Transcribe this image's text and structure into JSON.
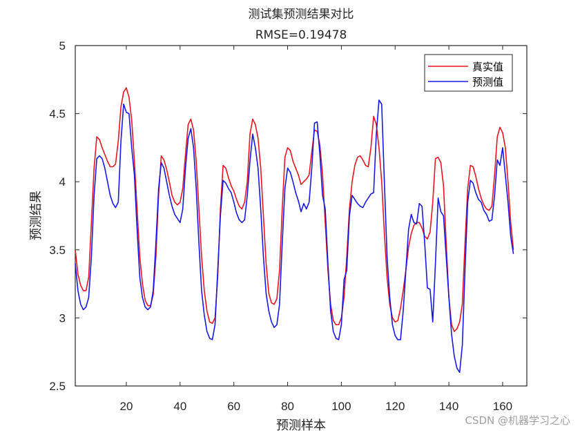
{
  "chart_data": {
    "type": "line",
    "title": "测试集预测结果对比",
    "subtitle": "RMSE=0.19478",
    "xlabel": "预测样本",
    "ylabel": "预测结果",
    "xlim": [
      1,
      169
    ],
    "ylim": [
      2.5,
      5
    ],
    "xticks": [
      20,
      40,
      60,
      80,
      100,
      120,
      140,
      160
    ],
    "yticks": [
      2.5,
      3,
      3.5,
      4,
      4.5,
      5
    ],
    "grid": false,
    "legend_position": "top-right",
    "series": [
      {
        "name": "真实值",
        "color": "#e8141f",
        "points": [
          [
            1,
            3.5
          ],
          [
            2,
            3.32
          ],
          [
            3,
            3.24
          ],
          [
            4,
            3.2
          ],
          [
            5,
            3.2
          ],
          [
            6,
            3.3
          ],
          [
            7,
            3.7
          ],
          [
            8,
            4.1
          ],
          [
            9,
            4.33
          ],
          [
            10,
            4.31
          ],
          [
            11,
            4.25
          ],
          [
            12,
            4.2
          ],
          [
            13,
            4.15
          ],
          [
            14,
            4.11
          ],
          [
            15,
            4.11
          ],
          [
            16,
            4.13
          ],
          [
            17,
            4.3
          ],
          [
            18,
            4.55
          ],
          [
            19,
            4.66
          ],
          [
            20,
            4.69
          ],
          [
            21,
            4.62
          ],
          [
            22,
            4.45
          ],
          [
            23,
            4.15
          ],
          [
            24,
            3.8
          ],
          [
            25,
            3.45
          ],
          [
            26,
            3.25
          ],
          [
            27,
            3.13
          ],
          [
            28,
            3.09
          ],
          [
            29,
            3.09
          ],
          [
            30,
            3.17
          ],
          [
            31,
            3.45
          ],
          [
            32,
            3.9
          ],
          [
            33,
            4.19
          ],
          [
            34,
            4.16
          ],
          [
            35,
            4.09
          ],
          [
            36,
            4.0
          ],
          [
            37,
            3.9
          ],
          [
            38,
            3.85
          ],
          [
            39,
            3.83
          ],
          [
            40,
            3.85
          ],
          [
            41,
            3.95
          ],
          [
            42,
            4.2
          ],
          [
            43,
            4.42
          ],
          [
            44,
            4.46
          ],
          [
            45,
            4.38
          ],
          [
            46,
            4.15
          ],
          [
            47,
            3.8
          ],
          [
            48,
            3.45
          ],
          [
            49,
            3.2
          ],
          [
            50,
            3.05
          ],
          [
            51,
            2.97
          ],
          [
            52,
            2.96
          ],
          [
            53,
            3.0
          ],
          [
            54,
            3.3
          ],
          [
            55,
            3.8
          ],
          [
            56,
            4.12
          ],
          [
            57,
            4.1
          ],
          [
            58,
            4.03
          ],
          [
            59,
            3.97
          ],
          [
            60,
            3.93
          ],
          [
            61,
            3.87
          ],
          [
            62,
            3.82
          ],
          [
            63,
            3.8
          ],
          [
            64,
            3.85
          ],
          [
            65,
            4.0
          ],
          [
            66,
            4.35
          ],
          [
            67,
            4.46
          ],
          [
            68,
            4.42
          ],
          [
            69,
            4.32
          ],
          [
            70,
            4.1
          ],
          [
            71,
            3.75
          ],
          [
            72,
            3.4
          ],
          [
            73,
            3.18
          ],
          [
            74,
            3.11
          ],
          [
            75,
            3.1
          ],
          [
            76,
            3.14
          ],
          [
            77,
            3.35
          ],
          [
            78,
            3.8
          ],
          [
            79,
            4.18
          ],
          [
            80,
            4.25
          ],
          [
            81,
            4.23
          ],
          [
            82,
            4.15
          ],
          [
            83,
            4.1
          ],
          [
            84,
            4.05
          ],
          [
            85,
            3.98
          ],
          [
            86,
            4.0
          ],
          [
            87,
            4.02
          ],
          [
            88,
            4.05
          ],
          [
            89,
            4.22
          ],
          [
            90,
            4.38
          ],
          [
            91,
            4.37
          ],
          [
            92,
            4.27
          ],
          [
            93,
            4.05
          ],
          [
            94,
            3.7
          ],
          [
            95,
            3.35
          ],
          [
            96,
            3.1
          ],
          [
            97,
            2.98
          ],
          [
            98,
            2.95
          ],
          [
            99,
            2.95
          ],
          [
            100,
            3.0
          ],
          [
            101,
            3.15
          ],
          [
            102,
            3.45
          ],
          [
            103,
            3.8
          ],
          [
            104,
            4.0
          ],
          [
            105,
            4.12
          ],
          [
            106,
            4.18
          ],
          [
            107,
            4.19
          ],
          [
            108,
            4.16
          ],
          [
            109,
            4.12
          ],
          [
            110,
            4.11
          ],
          [
            111,
            4.25
          ],
          [
            112,
            4.48
          ],
          [
            113,
            4.42
          ],
          [
            114,
            4.25
          ],
          [
            115,
            4.0
          ],
          [
            116,
            3.62
          ],
          [
            117,
            3.3
          ],
          [
            118,
            3.1
          ],
          [
            119,
            3.0
          ],
          [
            120,
            2.97
          ],
          [
            121,
            2.98
          ],
          [
            122,
            3.07
          ],
          [
            123,
            3.2
          ],
          [
            124,
            3.35
          ],
          [
            125,
            3.52
          ],
          [
            126,
            3.62
          ],
          [
            127,
            3.68
          ],
          [
            128,
            3.7
          ],
          [
            129,
            3.7
          ],
          [
            130,
            3.66
          ],
          [
            131,
            3.6
          ],
          [
            132,
            3.58
          ],
          [
            133,
            3.63
          ],
          [
            134,
            3.85
          ],
          [
            135,
            4.17
          ],
          [
            136,
            4.18
          ],
          [
            137,
            4.14
          ],
          [
            138,
            3.97
          ],
          [
            139,
            3.55
          ],
          [
            140,
            3.15
          ],
          [
            141,
            2.95
          ],
          [
            142,
            2.9
          ],
          [
            143,
            2.92
          ],
          [
            144,
            2.97
          ],
          [
            145,
            3.1
          ],
          [
            146,
            3.55
          ],
          [
            147,
            3.95
          ],
          [
            148,
            4.12
          ],
          [
            149,
            4.11
          ],
          [
            150,
            4.04
          ],
          [
            151,
            3.95
          ],
          [
            152,
            3.88
          ],
          [
            153,
            3.83
          ],
          [
            154,
            3.8
          ],
          [
            155,
            3.79
          ],
          [
            156,
            3.82
          ],
          [
            157,
            4.05
          ],
          [
            158,
            4.33
          ],
          [
            159,
            4.4
          ],
          [
            160,
            4.36
          ],
          [
            161,
            4.25
          ],
          [
            162,
            4.0
          ],
          [
            163,
            3.7
          ],
          [
            164,
            3.5
          ]
        ]
      },
      {
        "name": "预测值",
        "color": "#1518e6",
        "points": [
          [
            1,
            3.4
          ],
          [
            2,
            3.2
          ],
          [
            3,
            3.1
          ],
          [
            4,
            3.06
          ],
          [
            5,
            3.08
          ],
          [
            6,
            3.15
          ],
          [
            7,
            3.45
          ],
          [
            8,
            3.9
          ],
          [
            9,
            4.17
          ],
          [
            10,
            4.19
          ],
          [
            11,
            4.17
          ],
          [
            12,
            4.1
          ],
          [
            13,
            4.0
          ],
          [
            14,
            3.9
          ],
          [
            15,
            3.84
          ],
          [
            16,
            3.81
          ],
          [
            17,
            3.85
          ],
          [
            18,
            4.3
          ],
          [
            19,
            4.57
          ],
          [
            20,
            4.51
          ],
          [
            21,
            4.5
          ],
          [
            22,
            4.25
          ],
          [
            23,
            4.05
          ],
          [
            24,
            3.65
          ],
          [
            25,
            3.3
          ],
          [
            26,
            3.15
          ],
          [
            27,
            3.08
          ],
          [
            28,
            3.06
          ],
          [
            29,
            3.08
          ],
          [
            30,
            3.2
          ],
          [
            31,
            3.55
          ],
          [
            32,
            3.95
          ],
          [
            33,
            4.14
          ],
          [
            34,
            4.1
          ],
          [
            35,
            4.0
          ],
          [
            36,
            3.9
          ],
          [
            37,
            3.82
          ],
          [
            38,
            3.76
          ],
          [
            39,
            3.73
          ],
          [
            40,
            3.7
          ],
          [
            41,
            3.8
          ],
          [
            42,
            4.1
          ],
          [
            43,
            4.32
          ],
          [
            44,
            4.39
          ],
          [
            45,
            4.25
          ],
          [
            46,
            3.95
          ],
          [
            47,
            3.55
          ],
          [
            48,
            3.2
          ],
          [
            49,
            3.02
          ],
          [
            50,
            2.9
          ],
          [
            51,
            2.85
          ],
          [
            52,
            2.84
          ],
          [
            53,
            2.95
          ],
          [
            54,
            3.35
          ],
          [
            55,
            3.75
          ],
          [
            56,
            4.01
          ],
          [
            57,
            3.99
          ],
          [
            58,
            3.95
          ],
          [
            59,
            3.92
          ],
          [
            60,
            3.85
          ],
          [
            61,
            3.77
          ],
          [
            62,
            3.72
          ],
          [
            63,
            3.7
          ],
          [
            64,
            3.72
          ],
          [
            65,
            3.9
          ],
          [
            66,
            4.15
          ],
          [
            67,
            4.35
          ],
          [
            68,
            4.25
          ],
          [
            69,
            4.1
          ],
          [
            70,
            3.8
          ],
          [
            71,
            3.45
          ],
          [
            72,
            3.18
          ],
          [
            73,
            3.05
          ],
          [
            74,
            2.97
          ],
          [
            75,
            2.93
          ],
          [
            76,
            2.95
          ],
          [
            77,
            3.1
          ],
          [
            78,
            3.55
          ],
          [
            79,
            3.95
          ],
          [
            80,
            4.1
          ],
          [
            81,
            4.07
          ],
          [
            82,
            4.0
          ],
          [
            83,
            3.92
          ],
          [
            84,
            3.86
          ],
          [
            85,
            3.78
          ],
          [
            86,
            3.84
          ],
          [
            87,
            3.8
          ],
          [
            88,
            3.85
          ],
          [
            89,
            4.1
          ],
          [
            90,
            4.43
          ],
          [
            91,
            4.44
          ],
          [
            92,
            4.2
          ],
          [
            93,
            3.9
          ],
          [
            94,
            3.8
          ],
          [
            95,
            3.4
          ],
          [
            96,
            3.05
          ],
          [
            97,
            2.9
          ],
          [
            98,
            2.85
          ],
          [
            99,
            2.84
          ],
          [
            100,
            2.95
          ],
          [
            101,
            3.28
          ],
          [
            102,
            3.35
          ],
          [
            103,
            3.75
          ],
          [
            104,
            3.9
          ],
          [
            105,
            3.87
          ],
          [
            106,
            3.84
          ],
          [
            107,
            3.82
          ],
          [
            108,
            3.81
          ],
          [
            109,
            3.85
          ],
          [
            110,
            3.88
          ],
          [
            111,
            3.91
          ],
          [
            112,
            3.92
          ],
          [
            113,
            4.35
          ],
          [
            114,
            4.6
          ],
          [
            115,
            4.57
          ],
          [
            116,
            4.0
          ],
          [
            117,
            3.45
          ],
          [
            118,
            3.15
          ],
          [
            119,
            2.95
          ],
          [
            120,
            2.87
          ],
          [
            121,
            2.84
          ],
          [
            122,
            2.84
          ],
          [
            123,
            3.05
          ],
          [
            124,
            3.35
          ],
          [
            125,
            3.65
          ],
          [
            126,
            3.76
          ],
          [
            127,
            3.7
          ],
          [
            128,
            3.69
          ],
          [
            129,
            3.84
          ],
          [
            130,
            3.82
          ],
          [
            131,
            3.55
          ],
          [
            132,
            3.22
          ],
          [
            133,
            3.21
          ],
          [
            134,
            2.97
          ],
          [
            135,
            3.4
          ],
          [
            136,
            3.88
          ],
          [
            137,
            3.78
          ],
          [
            138,
            3.75
          ],
          [
            139,
            3.45
          ],
          [
            140,
            3.15
          ],
          [
            141,
            2.88
          ],
          [
            142,
            2.72
          ],
          [
            143,
            2.63
          ],
          [
            144,
            2.6
          ],
          [
            145,
            2.8
          ],
          [
            146,
            3.35
          ],
          [
            147,
            3.85
          ],
          [
            148,
            4.01
          ],
          [
            149,
            3.99
          ],
          [
            150,
            3.92
          ],
          [
            151,
            3.87
          ],
          [
            152,
            3.85
          ],
          [
            153,
            3.79
          ],
          [
            154,
            3.76
          ],
          [
            155,
            3.71
          ],
          [
            156,
            3.72
          ],
          [
            157,
            3.9
          ],
          [
            158,
            4.16
          ],
          [
            159,
            4.12
          ],
          [
            160,
            4.25
          ],
          [
            161,
            4.05
          ],
          [
            162,
            3.85
          ],
          [
            163,
            3.6
          ],
          [
            164,
            3.47
          ]
        ]
      }
    ]
  },
  "watermark": "CSDN @机器学习之心"
}
